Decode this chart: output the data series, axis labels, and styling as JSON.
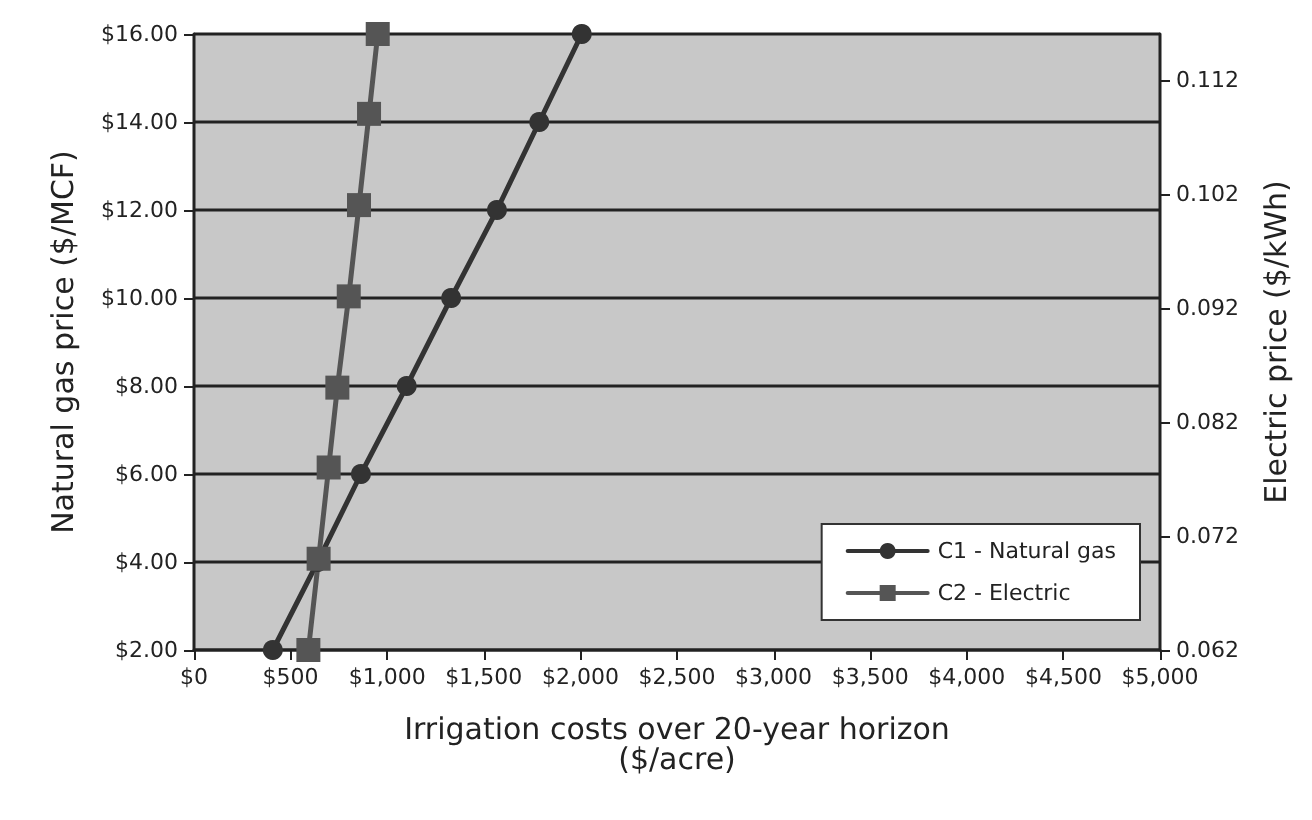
{
  "chart_data": {
    "type": "line",
    "xlabel": "Irrigation costs over 20-year horizon\n($/acre)",
    "ylabel": "Natural gas price ($/MCF)",
    "y2label": "Electric price ($/kWh)",
    "series": [
      {
        "name": "C1 - Natural gas",
        "color": "#333333",
        "marker": "circle",
        "x": [
          408,
          640,
          864,
          1101,
          1331,
          1568,
          1787,
          2007
        ],
        "values": [
          2,
          4,
          6,
          8,
          10,
          12,
          14,
          16
        ]
      },
      {
        "name": "C2 - Electric",
        "color": "#555555",
        "marker": "square",
        "axis": "y2",
        "x": [
          592,
          645,
          697,
          742,
          801,
          854,
          906,
          951
        ],
        "values": [
          0.062,
          0.07,
          0.078,
          0.085,
          0.093,
          0.101,
          0.109,
          0.116
        ]
      }
    ],
    "xlim": [
      0,
      5000
    ],
    "xticks": [
      {
        "value": 0,
        "label": "$0"
      },
      {
        "value": 500,
        "label": "$500"
      },
      {
        "value": 1000,
        "label": "$1,000"
      },
      {
        "value": 1500,
        "label": "$1,500"
      },
      {
        "value": 2000,
        "label": "$2,000"
      },
      {
        "value": 2500,
        "label": "$2,500"
      },
      {
        "value": 3000,
        "label": "$3,000"
      },
      {
        "value": 3500,
        "label": "$3,500"
      },
      {
        "value": 4000,
        "label": "$4,000"
      },
      {
        "value": 4500,
        "label": "$4,500"
      },
      {
        "value": 5000,
        "label": "$5,000"
      }
    ],
    "ylim": [
      2,
      16
    ],
    "yticks": [
      {
        "value": 2,
        "label": "$2.00"
      },
      {
        "value": 4,
        "label": "$4.00"
      },
      {
        "value": 6,
        "label": "$6.00"
      },
      {
        "value": 8,
        "label": "$8.00"
      },
      {
        "value": 10,
        "label": "$10.00"
      },
      {
        "value": 12,
        "label": "$12.00"
      },
      {
        "value": 14,
        "label": "$14.00"
      },
      {
        "value": 16,
        "label": "$16.00"
      }
    ],
    "y2lim": [
      0.062,
      0.116
    ],
    "y2ticks": [
      0.062,
      0.072,
      0.082,
      0.092,
      0.102,
      0.112
    ],
    "grid": "y",
    "legend": "bottom right",
    "line_style": "solid"
  }
}
